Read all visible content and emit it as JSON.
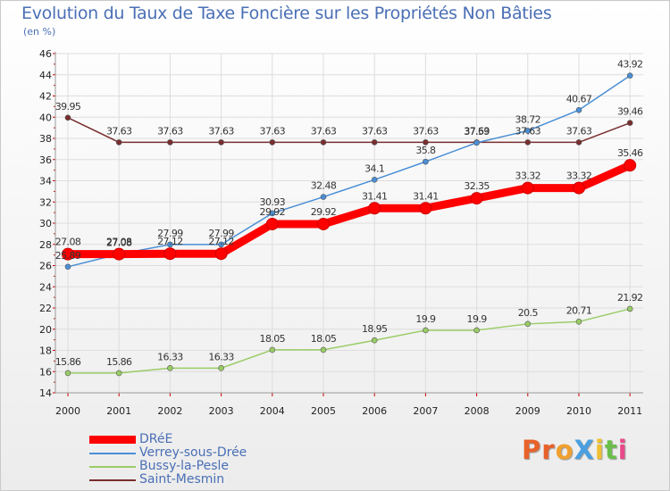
{
  "chart_data": {
    "type": "line",
    "title": "Evolution du Taux de Taxe Foncière sur les Propriétés Non Bâties",
    "unit_label": "(en %)",
    "x": [
      "2000",
      "2001",
      "2002",
      "2003",
      "2004",
      "2005",
      "2006",
      "2007",
      "2008",
      "2009",
      "2010",
      "2011"
    ],
    "ylim": [
      14,
      46
    ],
    "yticks": [
      14,
      16,
      18,
      20,
      22,
      24,
      26,
      28,
      30,
      32,
      34,
      36,
      38,
      40,
      42,
      44,
      46
    ],
    "grid": true,
    "legend_position": "bottom-left",
    "series": [
      {
        "name": "DRéE",
        "color": "#ff0000",
        "values": [
          27.08,
          27.08,
          27.12,
          27.12,
          29.92,
          29.92,
          31.41,
          31.41,
          32.35,
          33.32,
          33.32,
          35.46
        ],
        "labels": [
          "27.08",
          "27.08",
          "27.12",
          "27.12",
          "29.92",
          "29.92",
          "31.41",
          "31.41",
          "32.35",
          "33.32",
          "33.32",
          "35.46"
        ]
      },
      {
        "name": "Verrey-sous-Drée",
        "color": "#4a8fd6",
        "values": [
          25.89,
          27.08,
          27.99,
          27.99,
          30.93,
          32.48,
          34.1,
          35.8,
          37.59,
          38.72,
          40.67,
          43.92
        ],
        "labels": [
          "25.89",
          "27.08",
          "27.99",
          "27.99",
          "30.93",
          "32.48",
          "34.1",
          "35.8",
          "37.59",
          "38.72",
          "40.67",
          "43.92"
        ]
      },
      {
        "name": "Bussy-la-Pesle",
        "color": "#99cc66",
        "values": [
          15.86,
          15.86,
          16.33,
          16.33,
          18.05,
          18.05,
          18.95,
          19.9,
          19.9,
          20.5,
          20.71,
          21.92
        ],
        "labels": [
          "15.86",
          "15.86",
          "16.33",
          "16.33",
          "18.05",
          "18.05",
          "18.95",
          "19.9",
          "19.9",
          "20.5",
          "20.71",
          "21.92"
        ]
      },
      {
        "name": "Saint-Mesmin",
        "color": "#7a2e2e",
        "values": [
          39.95,
          37.63,
          37.63,
          37.63,
          37.63,
          37.63,
          37.63,
          37.63,
          37.63,
          37.63,
          37.63,
          39.46
        ],
        "labels": [
          "39.95",
          "37.63",
          "37.63",
          "37.63",
          "37.63",
          "37.63",
          "37.63",
          "37.63",
          "37.63",
          "37.63",
          "37.63",
          "39.46"
        ]
      }
    ]
  },
  "legend": {
    "items": [
      "DRéE",
      "Verrey-sous-Drée",
      "Bussy-la-Pesle",
      "Saint-Mesmin"
    ]
  },
  "logo": {
    "text": "ProXiti",
    "colors": [
      "#e8622a",
      "#e8622a",
      "#f0a030",
      "#4a9fe0",
      "#f0c030",
      "#6abf4b",
      "#e84a8a"
    ]
  }
}
